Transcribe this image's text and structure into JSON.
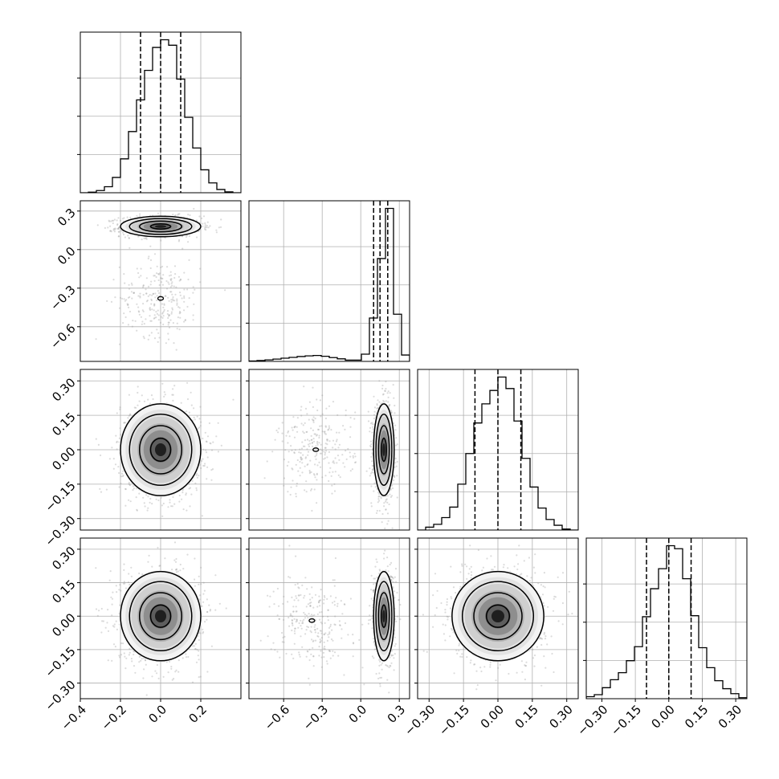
{
  "chart_data": {
    "type": "corner",
    "n_params": 4,
    "grid": true,
    "quantile_lines": "dashed",
    "contour_levels": 4,
    "axes": [
      {
        "range": [
          -0.4,
          0.4
        ],
        "ticks": [
          -0.4,
          -0.2,
          0.0,
          0.2
        ],
        "tick_labels": [
          "−0.4",
          "−0.2",
          "0.0",
          "0.2"
        ]
      },
      {
        "range": [
          -0.87,
          0.38
        ],
        "ticks": [
          -0.6,
          -0.3,
          0.0,
          0.3
        ],
        "tick_labels": [
          "−0.6",
          "−0.3",
          "0.0",
          "0.3"
        ]
      },
      {
        "range": [
          -0.35,
          0.35
        ],
        "ticks": [
          -0.3,
          -0.15,
          0.0,
          0.15,
          0.3
        ],
        "tick_labels": [
          "−0.30",
          "−0.15",
          "0.00",
          "0.15",
          "0.30"
        ]
      },
      {
        "range": [
          -0.37,
          0.35
        ],
        "ticks": [
          -0.3,
          -0.15,
          0.0,
          0.15,
          0.3
        ],
        "tick_labels": [
          "−0.30",
          "−0.15",
          "0.00",
          "0.15",
          "0.30"
        ]
      }
    ],
    "histograms": [
      {
        "param": 0,
        "bin_edges": [
          -0.4,
          -0.36,
          -0.32,
          -0.28,
          -0.24,
          -0.2,
          -0.16,
          -0.12,
          -0.08,
          -0.04,
          0.0,
          0.04,
          0.08,
          0.12,
          0.16,
          0.2,
          0.24,
          0.28,
          0.32,
          0.36,
          0.4
        ],
        "counts": [
          0,
          5,
          20,
          55,
          140,
          310,
          560,
          850,
          1120,
          1330,
          1400,
          1350,
          1040,
          690,
          410,
          210,
          90,
          30,
          8,
          0
        ],
        "quantiles": [
          -0.1,
          0.0,
          0.1
        ]
      },
      {
        "param": 1,
        "bin_edges": [
          -0.87,
          -0.8075,
          -0.745,
          -0.6825,
          -0.62,
          -0.5575,
          -0.495,
          -0.4325,
          -0.37,
          -0.3075,
          -0.245,
          -0.1825,
          -0.12,
          -0.0575,
          0.005,
          0.0675,
          0.13,
          0.1925,
          0.255,
          0.3175,
          0.38
        ],
        "counts": [
          10,
          20,
          35,
          55,
          75,
          95,
          115,
          130,
          140,
          120,
          90,
          60,
          30,
          30,
          170,
          1020,
          2420,
          3600,
          1110,
          150
        ],
        "quantiles": [
          0.1,
          0.15,
          0.21
        ]
      },
      {
        "param": 2,
        "bin_edges": [
          -0.35,
          -0.315,
          -0.28,
          -0.245,
          -0.21,
          -0.175,
          -0.14,
          -0.105,
          -0.07,
          -0.035,
          0.0,
          0.035,
          0.07,
          0.105,
          0.14,
          0.175,
          0.21,
          0.245,
          0.28,
          0.315,
          0.35
        ],
        "counts": [
          0,
          30,
          60,
          130,
          240,
          480,
          800,
          1120,
          1320,
          1460,
          1600,
          1480,
          1140,
          750,
          450,
          230,
          110,
          50,
          10,
          0
        ],
        "quantiles": [
          -0.1,
          0.0,
          0.1
        ]
      },
      {
        "param": 3,
        "bin_edges": [
          -0.37,
          -0.334,
          -0.298,
          -0.262,
          -0.226,
          -0.19,
          -0.154,
          -0.118,
          -0.082,
          -0.046,
          -0.01,
          0.026,
          0.062,
          0.098,
          0.134,
          0.17,
          0.206,
          0.242,
          0.278,
          0.314,
          0.35
        ],
        "counts": [
          20,
          40,
          110,
          190,
          260,
          380,
          520,
          820,
          1100,
          1300,
          1530,
          1500,
          1200,
          830,
          510,
          310,
          180,
          100,
          50,
          10
        ],
        "quantiles": [
          -0.1,
          0.0,
          0.1
        ]
      }
    ],
    "joint": [
      {
        "x": 0,
        "y": 1,
        "modes": [
          {
            "cx": 0.0,
            "cy": 0.18,
            "sx": 0.1,
            "sy": 0.04,
            "weight": 0.8
          },
          {
            "cx": 0.0,
            "cy": -0.38,
            "sx": 0.1,
            "sy": 0.15,
            "weight": 0.2
          }
        ]
      },
      {
        "x": 0,
        "y": 2,
        "modes": [
          {
            "cx": 0.0,
            "cy": 0.0,
            "sx": 0.1,
            "sy": 0.1,
            "weight": 1
          }
        ]
      },
      {
        "x": 1,
        "y": 2,
        "modes": [
          {
            "cx": 0.18,
            "cy": 0.0,
            "sx": 0.04,
            "sy": 0.1,
            "weight": 0.8
          },
          {
            "cx": -0.35,
            "cy": 0.0,
            "sx": 0.15,
            "sy": 0.1,
            "weight": 0.2
          }
        ]
      },
      {
        "x": 0,
        "y": 3,
        "modes": [
          {
            "cx": 0.0,
            "cy": 0.0,
            "sx": 0.1,
            "sy": 0.1,
            "weight": 1
          }
        ]
      },
      {
        "x": 1,
        "y": 3,
        "modes": [
          {
            "cx": 0.18,
            "cy": 0.0,
            "sx": 0.04,
            "sy": 0.1,
            "weight": 0.8
          },
          {
            "cx": -0.38,
            "cy": -0.02,
            "sx": 0.15,
            "sy": 0.1,
            "weight": 0.2
          }
        ]
      },
      {
        "x": 2,
        "y": 3,
        "modes": [
          {
            "cx": 0.0,
            "cy": 0.0,
            "sx": 0.1,
            "sy": 0.1,
            "weight": 1
          }
        ]
      }
    ]
  }
}
